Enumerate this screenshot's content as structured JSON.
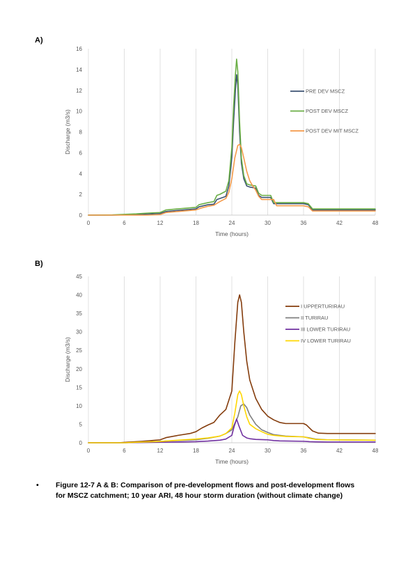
{
  "panels": {
    "a": "A)",
    "b": "B)"
  },
  "caption": {
    "bullet": "•",
    "text": "Figure 12-7 A & B: Comparison of pre-development flows and post-development flows for MSCZ catchment; 10 year ARI, 48 hour storm duration (without climate change)"
  },
  "chart_data": [
    {
      "type": "line",
      "title": "",
      "xlabel": "Time (hours)",
      "ylabel": "Discharge (m3/s)",
      "xlim": [
        0,
        48
      ],
      "ylim": [
        0,
        16
      ],
      "xticks": [
        0,
        6,
        12,
        18,
        24,
        30,
        36,
        42,
        48
      ],
      "yticks": [
        0,
        2,
        4,
        6,
        8,
        10,
        12,
        14,
        16
      ],
      "grid": "vertical",
      "legend": "right",
      "series": [
        {
          "name": "PRE DEV MSCZ",
          "color": "#3b5373",
          "x": [
            0,
            4,
            8,
            10,
            12,
            13,
            15,
            17,
            18,
            18.5,
            20,
            21,
            21.5,
            22,
            23,
            23.5,
            24,
            24.3,
            24.6,
            24.8,
            25,
            25.3,
            25.6,
            26,
            26.5,
            27,
            28,
            28.5,
            29,
            30,
            30.5,
            31,
            36,
            36.8,
            37.5,
            48
          ],
          "y": [
            0,
            0,
            0.05,
            0.1,
            0.15,
            0.35,
            0.45,
            0.55,
            0.6,
            0.8,
            1.0,
            1.05,
            1.5,
            1.6,
            1.8,
            2.8,
            5.5,
            9,
            12,
            13.5,
            12.5,
            8,
            5,
            3.5,
            2.8,
            2.7,
            2.6,
            1.9,
            1.7,
            1.7,
            1.7,
            1.1,
            1.1,
            1.0,
            0.5,
            0.5
          ]
        },
        {
          "name": "POST DEV MSCZ",
          "color": "#6aae45",
          "x": [
            0,
            4,
            8,
            10,
            12,
            13,
            15,
            17,
            18,
            18.5,
            20,
            21,
            21.5,
            22,
            23,
            23.5,
            24,
            24.3,
            24.6,
            24.8,
            25,
            25.3,
            25.6,
            26,
            26.5,
            27,
            28,
            28.5,
            29,
            30,
            30.5,
            31,
            36,
            36.8,
            37.5,
            48
          ],
          "y": [
            0,
            0.02,
            0.12,
            0.2,
            0.25,
            0.5,
            0.6,
            0.7,
            0.75,
            1.0,
            1.2,
            1.3,
            1.9,
            2.0,
            2.3,
            3.3,
            6.5,
            10.5,
            13.5,
            15.0,
            13.8,
            9,
            5.5,
            3.8,
            3.0,
            2.9,
            2.8,
            2.1,
            1.9,
            1.9,
            1.9,
            1.2,
            1.2,
            1.1,
            0.6,
            0.6
          ]
        },
        {
          "name": "POST DEV MIT MSCZ",
          "color": "#f59a4a",
          "x": [
            0,
            4,
            8,
            10,
            12,
            13,
            15,
            17,
            18,
            19,
            20,
            21,
            22,
            23,
            23.5,
            24,
            24.5,
            25,
            25.3,
            25.6,
            26,
            26.5,
            27,
            27.5,
            28,
            28.5,
            29,
            30,
            31,
            31.5,
            36,
            36.8,
            37.5,
            48
          ],
          "y": [
            0,
            0,
            0,
            0,
            0.05,
            0.25,
            0.35,
            0.45,
            0.5,
            0.7,
            0.85,
            0.95,
            1.3,
            1.6,
            2.2,
            3.5,
            5.5,
            6.7,
            6.8,
            6.5,
            5.5,
            4.2,
            3.3,
            2.8,
            2.4,
            1.8,
            1.5,
            1.5,
            1.5,
            0.9,
            0.9,
            0.8,
            0.4,
            0.4
          ]
        }
      ]
    },
    {
      "type": "line",
      "title": "",
      "xlabel": "Time (hours)",
      "ylabel": "Discharge (m3/s)",
      "xlim": [
        0,
        48
      ],
      "ylim": [
        0,
        45
      ],
      "xticks": [
        0,
        6,
        12,
        18,
        24,
        30,
        36,
        42,
        48
      ],
      "yticks": [
        0,
        5,
        10,
        15,
        20,
        25,
        30,
        35,
        40,
        45
      ],
      "grid": "vertical",
      "legend": "right",
      "series": [
        {
          "name": "I UPPERTURIRAU",
          "color": "#843c0c",
          "x": [
            0,
            5,
            6,
            9,
            12,
            13,
            15,
            17,
            18,
            19,
            20,
            21,
            22,
            23,
            24,
            24.5,
            25,
            25.3,
            25.6,
            26,
            26.5,
            27,
            27.5,
            28,
            29,
            30,
            31,
            32,
            33,
            36,
            36.5,
            37.5,
            38.5,
            40,
            48
          ],
          "y": [
            0,
            0,
            0.1,
            0.4,
            0.8,
            1.4,
            2.0,
            2.5,
            3.0,
            4.0,
            4.8,
            5.5,
            7.5,
            9,
            14,
            27,
            38,
            40,
            38,
            30,
            22,
            17,
            14.5,
            12,
            9,
            7.2,
            6.2,
            5.5,
            5.2,
            5.2,
            4.8,
            3.2,
            2.6,
            2.5,
            2.5
          ]
        },
        {
          "name": "II TURIRAU",
          "color": "#7f7f7f",
          "x": [
            0,
            6,
            9,
            12,
            15,
            18,
            20,
            22,
            23,
            24,
            25,
            25.5,
            26,
            26.5,
            27,
            28,
            29,
            30,
            31,
            33,
            36,
            37,
            38,
            40,
            48
          ],
          "y": [
            0,
            0,
            0.2,
            0.4,
            0.6,
            0.8,
            1.2,
            1.8,
            2.5,
            3.5,
            7,
            10,
            10.5,
            9.5,
            7.5,
            5,
            3.5,
            2.8,
            2.2,
            1.8,
            1.6,
            1.3,
            1.0,
            0.8,
            0.7
          ]
        },
        {
          "name": "III LOWER TURIRAU",
          "color": "#7030a0",
          "x": [
            0,
            6,
            10,
            12,
            15,
            18,
            20,
            22,
            23,
            24,
            24.4,
            24.8,
            25.2,
            25.8,
            26.5,
            27,
            28,
            30,
            31,
            32,
            36,
            37,
            38,
            40,
            48
          ],
          "y": [
            0,
            0,
            0.1,
            0.15,
            0.2,
            0.3,
            0.45,
            0.7,
            1.0,
            2.0,
            4.5,
            6.4,
            4.5,
            2.0,
            1.3,
            1.1,
            0.9,
            0.8,
            0.6,
            0.5,
            0.4,
            0.3,
            0.25,
            0.2,
            0.2
          ]
        },
        {
          "name": "IV LOWER TURIRAU",
          "color": "#ffd700",
          "x": [
            0,
            6,
            9,
            12,
            15,
            18,
            20,
            22,
            23,
            24,
            24.5,
            25,
            25.3,
            25.6,
            26,
            26.5,
            27,
            28,
            29,
            30,
            31,
            33,
            36,
            37,
            38,
            40,
            48
          ],
          "y": [
            0,
            0,
            0.2,
            0.35,
            0.7,
            1.0,
            1.3,
            1.8,
            2.5,
            4,
            8,
            13,
            14,
            13,
            10,
            7,
            5,
            3.8,
            3.0,
            2.3,
            2.0,
            1.7,
            1.6,
            1.2,
            0.9,
            0.8,
            0.7
          ]
        }
      ]
    }
  ]
}
